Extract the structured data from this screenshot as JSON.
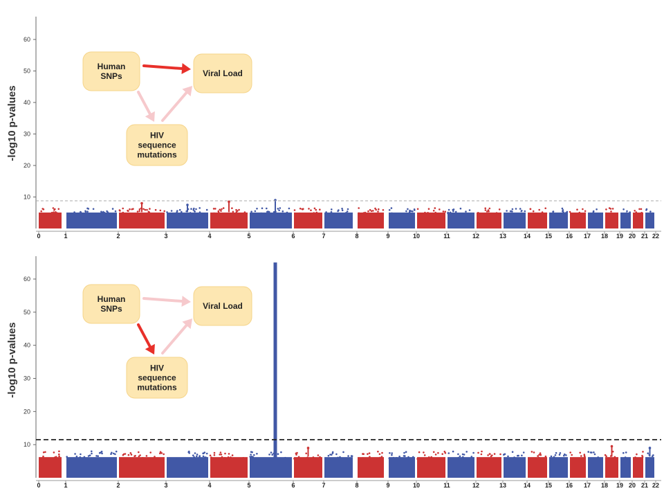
{
  "chart_data": [
    {
      "type": "scatter",
      "subtype": "manhattan",
      "ylabel": "-log10 p-values",
      "ylim": [
        0,
        65
      ],
      "yticks": [
        10,
        20,
        30,
        40,
        50,
        60
      ],
      "xticks": [
        "0",
        "1",
        "2",
        "3",
        "4",
        "5",
        "6",
        "7",
        "8",
        "9",
        "10",
        "11",
        "12",
        "13",
        "14",
        "15",
        "16",
        "17",
        "18",
        "19",
        "20",
        "21",
        "22"
      ],
      "colors": {
        "odd_chromosomes": "#cc3333",
        "even_chromosomes": "#4158a6"
      },
      "threshold": 8.8,
      "threshold_style": "dashed-gray",
      "baseline_max": 6.5,
      "peaks": [
        {
          "chromosome": "6",
          "value": 9
        },
        {
          "chromosome": "5",
          "value": 8.5
        },
        {
          "chromosome": "3",
          "value": 8
        },
        {
          "chromosome": "4",
          "value": 7.5
        }
      ],
      "diagram": {
        "human_snps": "Human\nSNPs",
        "viral_load": "Viral Load",
        "hiv_mutations": "HIV\nsequence\nmutations",
        "highlighted_arrow": "human_snps_to_viral_load"
      }
    },
    {
      "type": "scatter",
      "subtype": "manhattan",
      "ylabel": "-log10 p-values",
      "ylim": [
        0,
        70
      ],
      "yticks": [
        10,
        20,
        30,
        40,
        50,
        60
      ],
      "xticks": [
        "0",
        "1",
        "2",
        "3",
        "4",
        "5",
        "6",
        "7",
        "8",
        "9",
        "10",
        "11",
        "12",
        "13",
        "14",
        "15",
        "16",
        "17",
        "18",
        "19",
        "20",
        "21",
        "22"
      ],
      "colors": {
        "odd_chromosomes": "#cc3333",
        "even_chromosomes": "#4158a6"
      },
      "threshold": 11.5,
      "threshold_style": "dashed-black",
      "baseline_max": 8,
      "peaks": [
        {
          "chromosome": "6",
          "value": 65
        },
        {
          "chromosome": "19",
          "value": 9.5
        },
        {
          "chromosome": "22",
          "value": 9
        },
        {
          "chromosome": "7",
          "value": 9
        }
      ],
      "diagram": {
        "human_snps": "Human\nSNPs",
        "viral_load": "Viral Load",
        "hiv_mutations": "HIV\nsequence\nmutations",
        "highlighted_arrow": "human_snps_to_hiv_mutations"
      }
    }
  ]
}
